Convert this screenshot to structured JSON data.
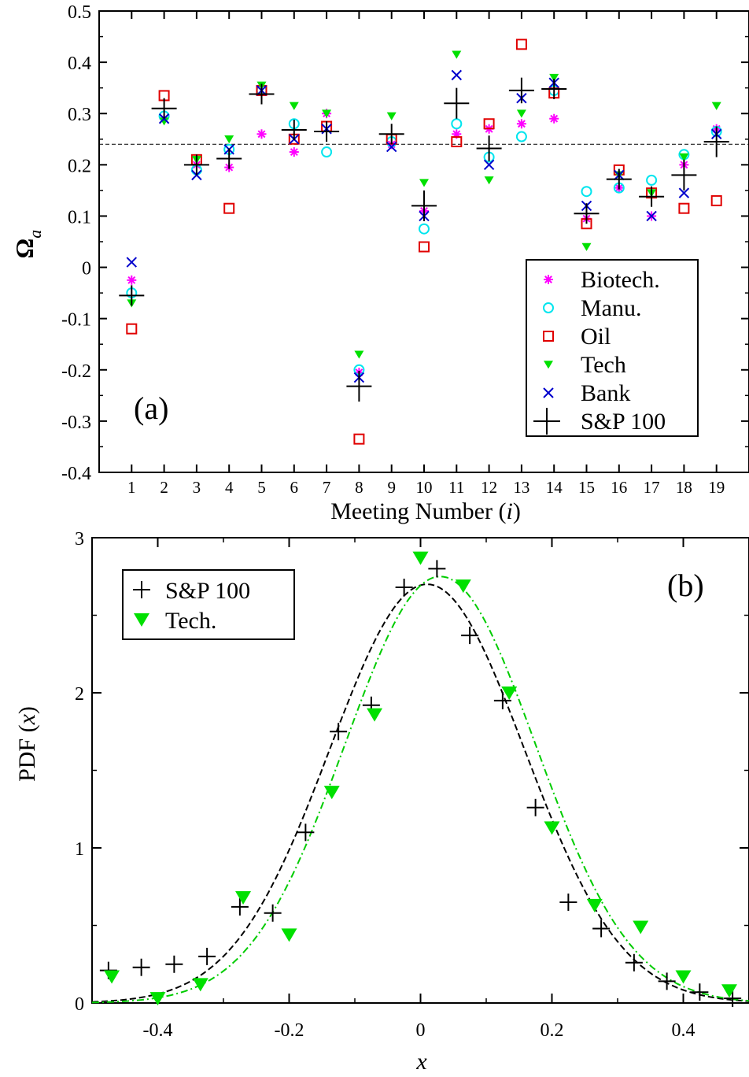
{
  "colors": {
    "Biotech.": "#ff00ff",
    "Manu.": "#00e5ee",
    "Oil": "#e00000",
    "Tech": "#00e000",
    "Bank": "#0000cc",
    "S&P 100": "#000000",
    "fit_sp": "#000000",
    "fit_tech": "#00cc00"
  },
  "chart_data": [
    {
      "type": "scatter",
      "panel_label": "(a)",
      "xlabel_prefix": "Meeting Number (",
      "xlabel_var": "i",
      "xlabel_suffix": ")",
      "ylabel_main": "Ω",
      "ylabel_sub": "a",
      "ylim": [
        -0.4,
        0.5
      ],
      "yticks": [
        "0.5",
        "0.4",
        "0.3",
        "0.2",
        "0.1",
        "0",
        "-0.1",
        "-0.2",
        "-0.3",
        "-0.4"
      ],
      "x": [
        1,
        2,
        3,
        4,
        5,
        6,
        7,
        8,
        9,
        10,
        11,
        12,
        13,
        14,
        15,
        16,
        17,
        18,
        19
      ],
      "reference_line_y": 0.24,
      "legend_position": "bottom-right",
      "series": [
        {
          "name": "Biotech.",
          "marker": "asterisk",
          "values": [
            -0.025,
            0.29,
            0.2,
            0.195,
            0.26,
            0.225,
            0.3,
            -0.205,
            0.24,
            0.11,
            0.26,
            0.27,
            0.28,
            0.29,
            0.095,
            0.155,
            0.1,
            0.2,
            0.27
          ]
        },
        {
          "name": "Manu.",
          "marker": "circle",
          "values": [
            -0.05,
            0.295,
            0.19,
            0.23,
            0.345,
            0.28,
            0.225,
            -0.2,
            0.245,
            0.075,
            0.28,
            0.215,
            0.255,
            0.345,
            0.148,
            0.155,
            0.17,
            0.22,
            0.265
          ]
        },
        {
          "name": "Oil",
          "marker": "square",
          "values": [
            -0.12,
            0.335,
            0.21,
            0.115,
            0.345,
            0.25,
            0.275,
            -0.335,
            0.25,
            0.04,
            0.245,
            0.28,
            0.435,
            0.34,
            0.085,
            0.19,
            0.145,
            0.115,
            0.13
          ]
        },
        {
          "name": "Tech",
          "marker": "triangle-down",
          "values": [
            -0.07,
            0.285,
            0.21,
            0.25,
            0.355,
            0.315,
            0.3,
            -0.17,
            0.295,
            0.165,
            0.415,
            0.17,
            0.3,
            0.37,
            0.04,
            0.18,
            0.145,
            0.215,
            0.315
          ]
        },
        {
          "name": "Bank",
          "marker": "x",
          "values": [
            0.01,
            0.29,
            0.18,
            0.23,
            0.345,
            0.25,
            0.27,
            -0.215,
            0.235,
            0.1,
            0.375,
            0.2,
            0.33,
            0.36,
            0.12,
            0.18,
            0.1,
            0.145,
            0.26
          ]
        },
        {
          "name": "S&P 100",
          "marker": "plus-errorbar",
          "values": [
            -0.055,
            0.31,
            0.2,
            0.212,
            0.338,
            0.268,
            0.265,
            -0.232,
            0.26,
            0.12,
            0.32,
            0.232,
            0.345,
            0.348,
            0.105,
            0.172,
            0.138,
            0.18,
            0.245
          ],
          "errors": [
            0.02,
            0.02,
            0.02,
            0.02,
            0.02,
            0.02,
            0.02,
            0.03,
            0.02,
            0.03,
            0.03,
            0.025,
            0.025,
            0.02,
            0.02,
            0.02,
            0.02,
            0.03,
            0.03
          ]
        }
      ]
    },
    {
      "type": "scatter",
      "panel_label": "(b)",
      "xlabel": "x",
      "ylabel_prefix": "PDF (",
      "ylabel_var": "x",
      "ylabel_suffix": ")",
      "xlim": [
        -0.5,
        0.5
      ],
      "ylim": [
        0,
        3
      ],
      "xticks": [
        "-0.4",
        "-0.2",
        "0",
        "0.2",
        "0.4"
      ],
      "yticks": [
        "0",
        "1",
        "2",
        "3"
      ],
      "legend_position": "top-left",
      "series": [
        {
          "name": "S&P 100",
          "marker": "plus",
          "x": [
            -0.475,
            -0.425,
            -0.375,
            -0.325,
            -0.275,
            -0.225,
            -0.175,
            -0.125,
            -0.075,
            -0.025,
            0.025,
            0.075,
            0.125,
            0.175,
            0.225,
            0.275,
            0.325,
            0.375,
            0.425,
            0.475
          ],
          "y": [
            0.21,
            0.23,
            0.25,
            0.3,
            0.62,
            0.58,
            1.1,
            1.75,
            1.92,
            2.68,
            2.8,
            2.37,
            1.95,
            1.26,
            0.65,
            0.48,
            0.26,
            0.14,
            0.07,
            0.03
          ]
        },
        {
          "name": "Tech.",
          "marker": "triangle-down",
          "x": [
            -0.47,
            -0.4,
            -0.335,
            -0.27,
            -0.2,
            -0.135,
            -0.07,
            0.0,
            0.065,
            0.135,
            0.2,
            0.265,
            0.335,
            0.4,
            0.47
          ],
          "y": [
            0.17,
            0.03,
            0.12,
            0.68,
            0.44,
            1.36,
            1.86,
            2.87,
            2.69,
            2.0,
            1.13,
            0.63,
            0.49,
            0.17,
            0.08
          ]
        }
      ],
      "fits": [
        {
          "series": "S&P 100",
          "style": "dashed",
          "mean": 0.01,
          "std": 0.148,
          "peak": 2.7
        },
        {
          "series": "Tech.",
          "style": "dash-dot",
          "mean": 0.03,
          "std": 0.145,
          "peak": 2.75
        }
      ]
    }
  ]
}
